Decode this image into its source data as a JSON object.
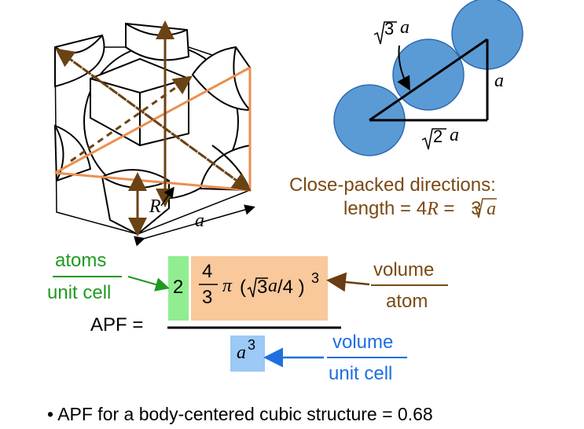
{
  "lattice": {
    "label_radius": "R",
    "label_edge": "a"
  },
  "triangle": {
    "hyp_label": "3",
    "hyp_var": "a",
    "side_label": "a",
    "base_label": "2",
    "base_var": "a"
  },
  "close_packed": {
    "line1": "Close-packed directions:",
    "line2_prefix": "length = 4",
    "line2_var": "R",
    "line2_mid": " = ",
    "line2_root": "3",
    "line2_suffix_var": "a"
  },
  "apf": {
    "label": "APF =",
    "atoms_numer": "atoms",
    "atoms_denom": "unit cell",
    "count": "2",
    "frac_num": "4",
    "frac_den": "3",
    "pi": "π",
    "paren_open": "(",
    "root_arg": "3",
    "var_a": "a",
    "div4": "/4 )",
    "exponent": "3",
    "volatom_numer": "volume",
    "volatom_denom": "atom",
    "denom_var": "a",
    "denom_exp": "3",
    "volcell_numer": "volume",
    "volcell_denom": "unit cell"
  },
  "bullet": {
    "symbol": "•",
    "text": "APF for a body-centered cubic structure = 0.68"
  },
  "colors": {
    "sphere_fill": "#5b9bd5",
    "sphere_stroke": "#2e6ab0",
    "orange_line": "#ec8f4f",
    "dashed_brown": "#6b4214",
    "green_box": "#90ee90",
    "orange_box": "#f9c89b",
    "blue_box": "#9cc9f5",
    "green_text": "#1f9a1f",
    "blue_text": "#1e6fe0",
    "brown_text": "#7a4a14"
  }
}
